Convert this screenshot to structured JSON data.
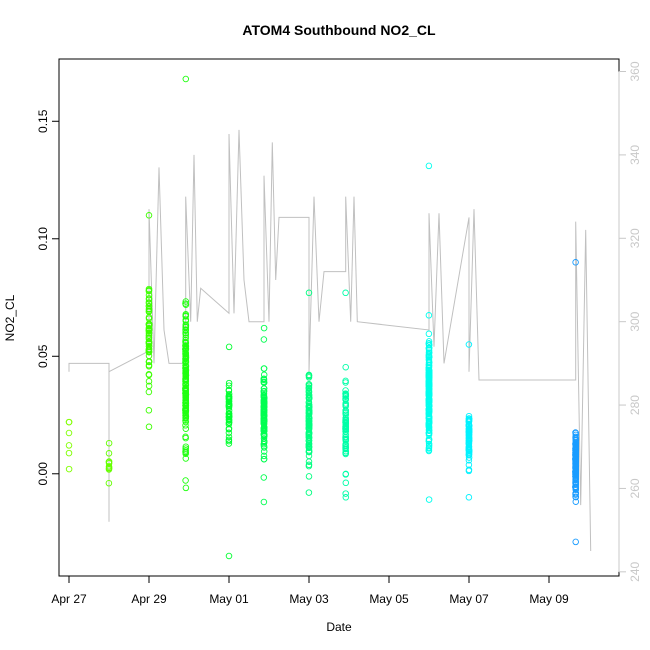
{
  "chart_data": {
    "type": "scatter",
    "title": "ATOM4 Southbound NO2_CL",
    "xlabel": "Date",
    "ylabel": "NO2_CL",
    "x_axis": {
      "type": "date",
      "range": [
        "2016-04-26T18:00",
        "2016-05-10T18:00"
      ],
      "ticks": [
        "2016-04-27",
        "2016-04-29",
        "2016-05-01",
        "2016-05-03",
        "2016-05-05",
        "2016-05-07",
        "2016-05-09"
      ],
      "tick_labels": [
        "Apr 27",
        "Apr 29",
        "May 01",
        "May 03",
        "May 05",
        "May 07",
        "May 09"
      ]
    },
    "y_axis": {
      "range": [
        -0.0435,
        0.1765
      ],
      "ticks": [
        0.0,
        0.05,
        0.1,
        0.15
      ],
      "tick_labels": [
        "0.00",
        "0.05",
        "0.10",
        "0.15"
      ]
    },
    "y2_axis": {
      "range": [
        239.0,
        363.0
      ],
      "ticks": [
        240,
        260,
        280,
        300,
        320,
        340,
        360
      ],
      "tick_labels": [
        "240",
        "260",
        "280",
        "300",
        "320",
        "340",
        "360"
      ],
      "color": "#c8c8c8"
    },
    "grid": false,
    "legend": "none",
    "point_color_scale": [
      "#66ff00",
      "#00ff66",
      "#00ffff",
      "#0088ff"
    ],
    "line_color": "#c0c0c0",
    "clusters": [
      {
        "center": "2016-04-27T00:00",
        "spread_min": 3,
        "y_mean": 0.015,
        "y_sd": 0.007,
        "count": 6,
        "y_min": 0.002,
        "y_max": 0.022,
        "color": "#80ff00"
      },
      {
        "center": "2016-04-28T00:00",
        "spread_min": 5,
        "y_mean": 0.004,
        "y_sd": 0.004,
        "count": 10,
        "y_min": -0.004,
        "y_max": 0.013,
        "color": "#66ff00"
      },
      {
        "center": "2016-04-29T00:00",
        "spread_min": 4,
        "y_mean": 0.06,
        "y_sd": 0.018,
        "count": 60,
        "y_min": 0.02,
        "y_max": 0.11,
        "color": "#3cff00"
      },
      {
        "center": "2016-04-29T22:00",
        "spread_min": 8,
        "y_mean": 0.04,
        "y_sd": 0.025,
        "count": 160,
        "y_min": -0.006,
        "y_max": 0.168,
        "color": "#20ff10"
      },
      {
        "center": "2016-05-01T00:00",
        "spread_min": 4,
        "y_mean": 0.027,
        "y_sd": 0.012,
        "count": 45,
        "y_min": -0.035,
        "y_max": 0.054,
        "color": "#00ff30"
      },
      {
        "center": "2016-05-01T21:00",
        "spread_min": 8,
        "y_mean": 0.026,
        "y_sd": 0.015,
        "count": 120,
        "y_min": -0.012,
        "y_max": 0.062,
        "color": "#00ff50"
      },
      {
        "center": "2016-05-03T00:00",
        "spread_min": 5,
        "y_mean": 0.025,
        "y_sd": 0.015,
        "count": 110,
        "y_min": -0.008,
        "y_max": 0.077,
        "color": "#00ff80"
      },
      {
        "center": "2016-05-03T22:00",
        "spread_min": 4,
        "y_mean": 0.02,
        "y_sd": 0.017,
        "count": 75,
        "y_min": -0.01,
        "y_max": 0.077,
        "color": "#00ffa8"
      },
      {
        "center": "2016-05-06T00:00",
        "spread_min": 6,
        "y_mean": 0.035,
        "y_sd": 0.02,
        "count": 190,
        "y_min": -0.011,
        "y_max": 0.131,
        "color": "#00ffee"
      },
      {
        "center": "2016-05-07T00:00",
        "spread_min": 4,
        "y_mean": 0.015,
        "y_sd": 0.01,
        "count": 70,
        "y_min": -0.01,
        "y_max": 0.055,
        "color": "#00f2ff"
      },
      {
        "center": "2016-05-09T16:00",
        "spread_min": 6,
        "y_mean": 0.005,
        "y_sd": 0.011,
        "count": 140,
        "y_min": -0.029,
        "y_max": 0.09,
        "color": "#1a9cff"
      }
    ],
    "line_series": [
      {
        "x": "2016-04-27T00:00",
        "y2": 288
      },
      {
        "x": "2016-04-27T00:00",
        "y2": 290
      },
      {
        "x": "2016-04-28T00:00",
        "y2": 290
      },
      {
        "x": "2016-04-28T00:00",
        "y2": 252
      },
      {
        "x": "2016-04-28T00:00",
        "y2": 288
      },
      {
        "x": "2016-04-29T00:00",
        "y2": 293
      },
      {
        "x": "2016-04-29T00:00",
        "y2": 327
      },
      {
        "x": "2016-04-29T03:00",
        "y2": 290
      },
      {
        "x": "2016-04-29T06:00",
        "y2": 337
      },
      {
        "x": "2016-04-29T09:00",
        "y2": 298
      },
      {
        "x": "2016-04-29T12:00",
        "y2": 290
      },
      {
        "x": "2016-04-29T22:00",
        "y2": 290
      },
      {
        "x": "2016-04-29T22:00",
        "y2": 330
      },
      {
        "x": "2016-04-30T01:00",
        "y2": 300
      },
      {
        "x": "2016-04-30T03:00",
        "y2": 340
      },
      {
        "x": "2016-04-30T05:00",
        "y2": 300
      },
      {
        "x": "2016-04-30T07:00",
        "y2": 308
      },
      {
        "x": "2016-05-01T00:00",
        "y2": 302
      },
      {
        "x": "2016-05-01T00:00",
        "y2": 345
      },
      {
        "x": "2016-05-01T03:00",
        "y2": 302
      },
      {
        "x": "2016-05-01T06:00",
        "y2": 346
      },
      {
        "x": "2016-05-01T09:00",
        "y2": 310
      },
      {
        "x": "2016-05-01T12:00",
        "y2": 300
      },
      {
        "x": "2016-05-01T21:00",
        "y2": 300
      },
      {
        "x": "2016-05-01T21:00",
        "y2": 335
      },
      {
        "x": "2016-05-02T00:00",
        "y2": 300
      },
      {
        "x": "2016-05-02T02:00",
        "y2": 343
      },
      {
        "x": "2016-05-02T04:00",
        "y2": 310
      },
      {
        "x": "2016-05-02T06:00",
        "y2": 325
      },
      {
        "x": "2016-05-03T00:00",
        "y2": 325
      },
      {
        "x": "2016-05-03T00:00",
        "y2": 288
      },
      {
        "x": "2016-05-03T03:00",
        "y2": 330
      },
      {
        "x": "2016-05-03T06:00",
        "y2": 300
      },
      {
        "x": "2016-05-03T09:00",
        "y2": 312
      },
      {
        "x": "2016-05-03T22:00",
        "y2": 312
      },
      {
        "x": "2016-05-03T22:00",
        "y2": 330
      },
      {
        "x": "2016-05-04T01:00",
        "y2": 300
      },
      {
        "x": "2016-05-04T03:00",
        "y2": 330
      },
      {
        "x": "2016-05-04T05:00",
        "y2": 300
      },
      {
        "x": "2016-05-06T00:00",
        "y2": 298
      },
      {
        "x": "2016-05-06T00:00",
        "y2": 326
      },
      {
        "x": "2016-05-06T03:00",
        "y2": 294
      },
      {
        "x": "2016-05-06T06:00",
        "y2": 326
      },
      {
        "x": "2016-05-06T09:00",
        "y2": 290
      },
      {
        "x": "2016-05-07T00:00",
        "y2": 325
      },
      {
        "x": "2016-05-07T00:00",
        "y2": 288
      },
      {
        "x": "2016-05-07T03:00",
        "y2": 327
      },
      {
        "x": "2016-05-07T06:00",
        "y2": 286
      },
      {
        "x": "2016-05-09T16:00",
        "y2": 286
      },
      {
        "x": "2016-05-09T16:00",
        "y2": 324
      },
      {
        "x": "2016-05-09T19:00",
        "y2": 256
      },
      {
        "x": "2016-05-09T22:00",
        "y2": 322
      },
      {
        "x": "2016-05-10T01:00",
        "y2": 245
      }
    ]
  }
}
